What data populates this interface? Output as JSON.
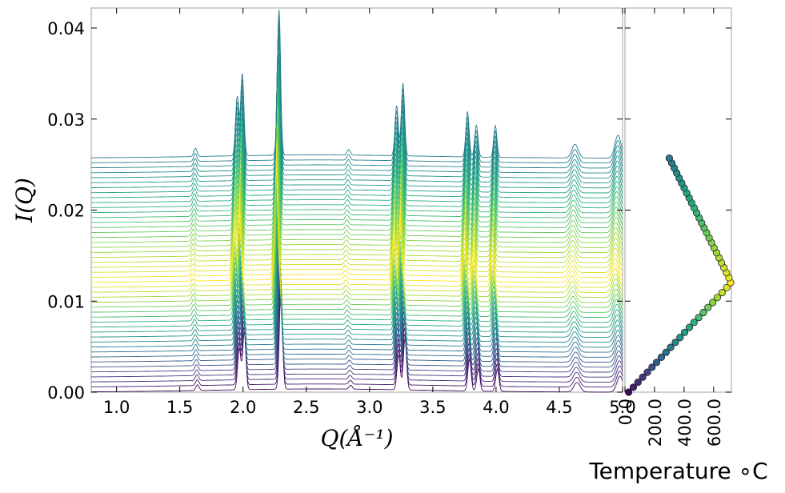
{
  "chart_data": [
    {
      "type": "line",
      "title": "",
      "xlabel": "Q(Å⁻¹)",
      "ylabel": "I(Q)",
      "xlim": [
        0.8,
        5.0
      ],
      "ylim": [
        0.0,
        0.0422
      ],
      "x_ticks": [
        "1.0",
        "1.5",
        "2.0",
        "2.5",
        "3.0",
        "3.5",
        "4.0",
        "4.5",
        "5.0"
      ],
      "y_ticks": [
        "0.00",
        "0.01",
        "0.02",
        "0.03",
        "0.04"
      ],
      "grid": false,
      "legend": "none",
      "colormap": "viridis",
      "series_count": 48,
      "baseline_offset_step": 0.000547,
      "peaks": [
        {
          "q": 1.64,
          "height": 0.0009
        },
        {
          "q": 1.97,
          "height": 0.0065
        },
        {
          "q": 2.01,
          "height": 0.009
        },
        {
          "q": 2.3,
          "height": 0.016
        },
        {
          "q": 2.85,
          "height": 0.0006
        },
        {
          "q": 3.23,
          "height": 0.0055
        },
        {
          "q": 3.28,
          "height": 0.008
        },
        {
          "q": 3.79,
          "height": 0.005
        },
        {
          "q": 3.86,
          "height": 0.0035
        },
        {
          "q": 4.01,
          "height": 0.0035
        },
        {
          "q": 4.64,
          "height": 0.0015
        },
        {
          "q": 4.98,
          "height": 0.0025
        }
      ]
    },
    {
      "type": "scatter",
      "title": "",
      "xlabel": "Temperature ∘C",
      "ylabel": "",
      "xlim": [
        0,
        720
      ],
      "x_ticks": [
        "0.0",
        "200.0",
        "400.0",
        "600.0"
      ],
      "temperature_min": 25,
      "temperature_max": 720,
      "points_count": 48,
      "peak_index": 22
    }
  ]
}
